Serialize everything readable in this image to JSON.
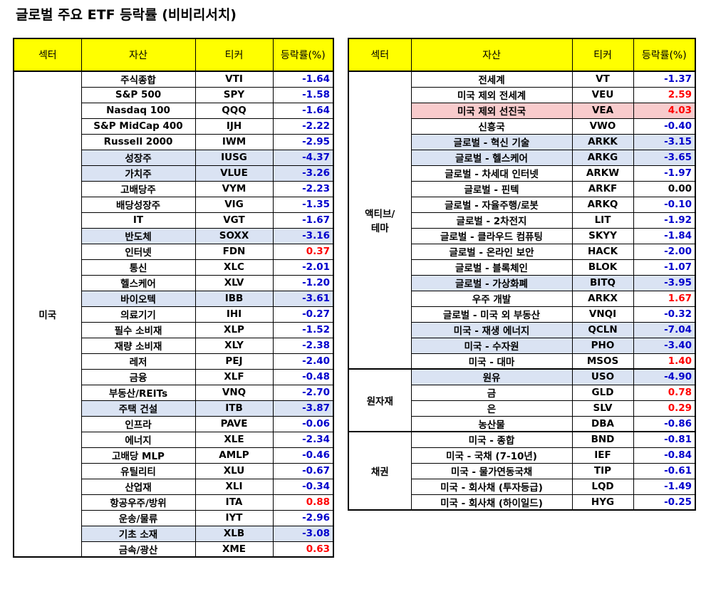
{
  "title": "글로벌 주요 ETF 등락률 (비비리서치)",
  "headers": {
    "sector": "섹터",
    "asset": "자산",
    "ticker": "티커",
    "change": "등락률(%)"
  },
  "left_table": {
    "groups": [
      {
        "sector": "미국",
        "rows": [
          {
            "asset": "주식종합",
            "ticker": "VTI",
            "value": "-1.64",
            "hl": ""
          },
          {
            "asset": "S&P 500",
            "ticker": "SPY",
            "value": "-1.58",
            "hl": ""
          },
          {
            "asset": "Nasdaq 100",
            "ticker": "QQQ",
            "value": "-1.64",
            "hl": ""
          },
          {
            "asset": "S&P MidCap 400",
            "ticker": "IJH",
            "value": "-2.22",
            "hl": ""
          },
          {
            "asset": "Russell 2000",
            "ticker": "IWM",
            "value": "-2.95",
            "hl": ""
          },
          {
            "asset": "성장주",
            "ticker": "IUSG",
            "value": "-4.37",
            "hl": "blue"
          },
          {
            "asset": "가치주",
            "ticker": "VLUE",
            "value": "-3.26",
            "hl": "blue"
          },
          {
            "asset": "고배당주",
            "ticker": "VYM",
            "value": "-2.23",
            "hl": ""
          },
          {
            "asset": "배당성장주",
            "ticker": "VIG",
            "value": "-1.35",
            "hl": ""
          },
          {
            "asset": "IT",
            "ticker": "VGT",
            "value": "-1.67",
            "hl": ""
          },
          {
            "asset": "반도체",
            "ticker": "SOXX",
            "value": "-3.16",
            "hl": "blue"
          },
          {
            "asset": "인터넷",
            "ticker": "FDN",
            "value": "0.37",
            "hl": ""
          },
          {
            "asset": "통신",
            "ticker": "XLC",
            "value": "-2.01",
            "hl": ""
          },
          {
            "asset": "헬스케어",
            "ticker": "XLV",
            "value": "-1.20",
            "hl": ""
          },
          {
            "asset": "바이오텍",
            "ticker": "IBB",
            "value": "-3.61",
            "hl": "blue"
          },
          {
            "asset": "의료기기",
            "ticker": "IHI",
            "value": "-0.27",
            "hl": ""
          },
          {
            "asset": "필수 소비재",
            "ticker": "XLP",
            "value": "-1.52",
            "hl": ""
          },
          {
            "asset": "재량 소비재",
            "ticker": "XLY",
            "value": "-2.38",
            "hl": ""
          },
          {
            "asset": "레저",
            "ticker": "PEJ",
            "value": "-2.40",
            "hl": ""
          },
          {
            "asset": "금융",
            "ticker": "XLF",
            "value": "-0.48",
            "hl": ""
          },
          {
            "asset": "부동산/REITs",
            "ticker": "VNQ",
            "value": "-2.70",
            "hl": ""
          },
          {
            "asset": "주택 건설",
            "ticker": "ITB",
            "value": "-3.87",
            "hl": "blue"
          },
          {
            "asset": "인프라",
            "ticker": "PAVE",
            "value": "-0.06",
            "hl": ""
          },
          {
            "asset": "에너지",
            "ticker": "XLE",
            "value": "-2.34",
            "hl": ""
          },
          {
            "asset": "고배당 MLP",
            "ticker": "AMLP",
            "value": "-0.46",
            "hl": ""
          },
          {
            "asset": "유틸리티",
            "ticker": "XLU",
            "value": "-0.67",
            "hl": ""
          },
          {
            "asset": "산업재",
            "ticker": "XLI",
            "value": "-0.34",
            "hl": ""
          },
          {
            "asset": "항공우주/방위",
            "ticker": "ITA",
            "value": "0.88",
            "hl": ""
          },
          {
            "asset": "운송/물류",
            "ticker": "IYT",
            "value": "-2.96",
            "hl": ""
          },
          {
            "asset": "기초 소재",
            "ticker": "XLB",
            "value": "-3.08",
            "hl": "blue"
          },
          {
            "asset": "금속/광산",
            "ticker": "XME",
            "value": "0.63",
            "hl": ""
          }
        ]
      }
    ]
  },
  "right_table": {
    "groups": [
      {
        "sector": "액티브/\n테마",
        "rows": [
          {
            "asset": "전세계",
            "ticker": "VT",
            "value": "-1.37",
            "hl": ""
          },
          {
            "asset": "미국 제외 전세계",
            "ticker": "VEU",
            "value": "2.59",
            "hl": ""
          },
          {
            "asset": "미국 제외 선진국",
            "ticker": "VEA",
            "value": "4.03",
            "hl": "pink"
          },
          {
            "asset": "신흥국",
            "ticker": "VWO",
            "value": "-0.40",
            "hl": ""
          },
          {
            "asset": "글로벌 - 혁신 기술",
            "ticker": "ARKK",
            "value": "-3.15",
            "hl": "blue"
          },
          {
            "asset": "글로벌 - 헬스케어",
            "ticker": "ARKG",
            "value": "-3.65",
            "hl": "blue"
          },
          {
            "asset": "글로벌 - 차세대 인터넷",
            "ticker": "ARKW",
            "value": "-1.97",
            "hl": ""
          },
          {
            "asset": "글로벌 - 핀텍",
            "ticker": "ARKF",
            "value": "0.00",
            "hl": ""
          },
          {
            "asset": "글로벌 - 자율주행/로봇",
            "ticker": "ARKQ",
            "value": "-0.10",
            "hl": ""
          },
          {
            "asset": "글로벌 - 2차전지",
            "ticker": "LIT",
            "value": "-1.92",
            "hl": ""
          },
          {
            "asset": "글로벌 - 클라우드 컴퓨팅",
            "ticker": "SKYY",
            "value": "-1.84",
            "hl": ""
          },
          {
            "asset": "글로벌 - 온라인 보안",
            "ticker": "HACK",
            "value": "-2.00",
            "hl": ""
          },
          {
            "asset": "글로벌 - 블록체인",
            "ticker": "BLOK",
            "value": "-1.07",
            "hl": ""
          },
          {
            "asset": "글로벌 - 가상화폐",
            "ticker": "BITQ",
            "value": "-3.95",
            "hl": "blue"
          },
          {
            "asset": "우주 개발",
            "ticker": "ARKX",
            "value": "1.67",
            "hl": ""
          },
          {
            "asset": "글로벌 - 미국 외 부동산",
            "ticker": "VNQI",
            "value": "-0.32",
            "hl": ""
          },
          {
            "asset": "미국 - 재생 에너지",
            "ticker": "QCLN",
            "value": "-7.04",
            "hl": "blue"
          },
          {
            "asset": "미국 - 수자원",
            "ticker": "PHO",
            "value": "-3.40",
            "hl": "blue"
          },
          {
            "asset": "미국 - 대마",
            "ticker": "MSOS",
            "value": "1.40",
            "hl": ""
          }
        ]
      },
      {
        "sector": "원자재",
        "rows": [
          {
            "asset": "원유",
            "ticker": "USO",
            "value": "-4.90",
            "hl": "blue"
          },
          {
            "asset": "금",
            "ticker": "GLD",
            "value": "0.78",
            "hl": ""
          },
          {
            "asset": "은",
            "ticker": "SLV",
            "value": "0.29",
            "hl": ""
          },
          {
            "asset": "농산물",
            "ticker": "DBA",
            "value": "-0.86",
            "hl": ""
          }
        ]
      },
      {
        "sector": "채권",
        "rows": [
          {
            "asset": "미국 - 종합",
            "ticker": "BND",
            "value": "-0.81",
            "hl": ""
          },
          {
            "asset": "미국 - 국채 (7-10년)",
            "ticker": "IEF",
            "value": "-0.84",
            "hl": ""
          },
          {
            "asset": "미국 - 물가연동국채",
            "ticker": "TIP",
            "value": "-0.61",
            "hl": ""
          },
          {
            "asset": "미국 - 회사채 (투자등급)",
            "ticker": "LQD",
            "value": "-1.49",
            "hl": ""
          },
          {
            "asset": "미국 - 회사채 (하이일드)",
            "ticker": "HYG",
            "value": "-0.25",
            "hl": ""
          }
        ]
      }
    ]
  },
  "colors": {
    "header_bg": "#ffff00",
    "highlight_blue": "#dae3f3",
    "highlight_pink": "#f8cbcc",
    "negative": "#0000cc",
    "positive": "#ff0000"
  }
}
